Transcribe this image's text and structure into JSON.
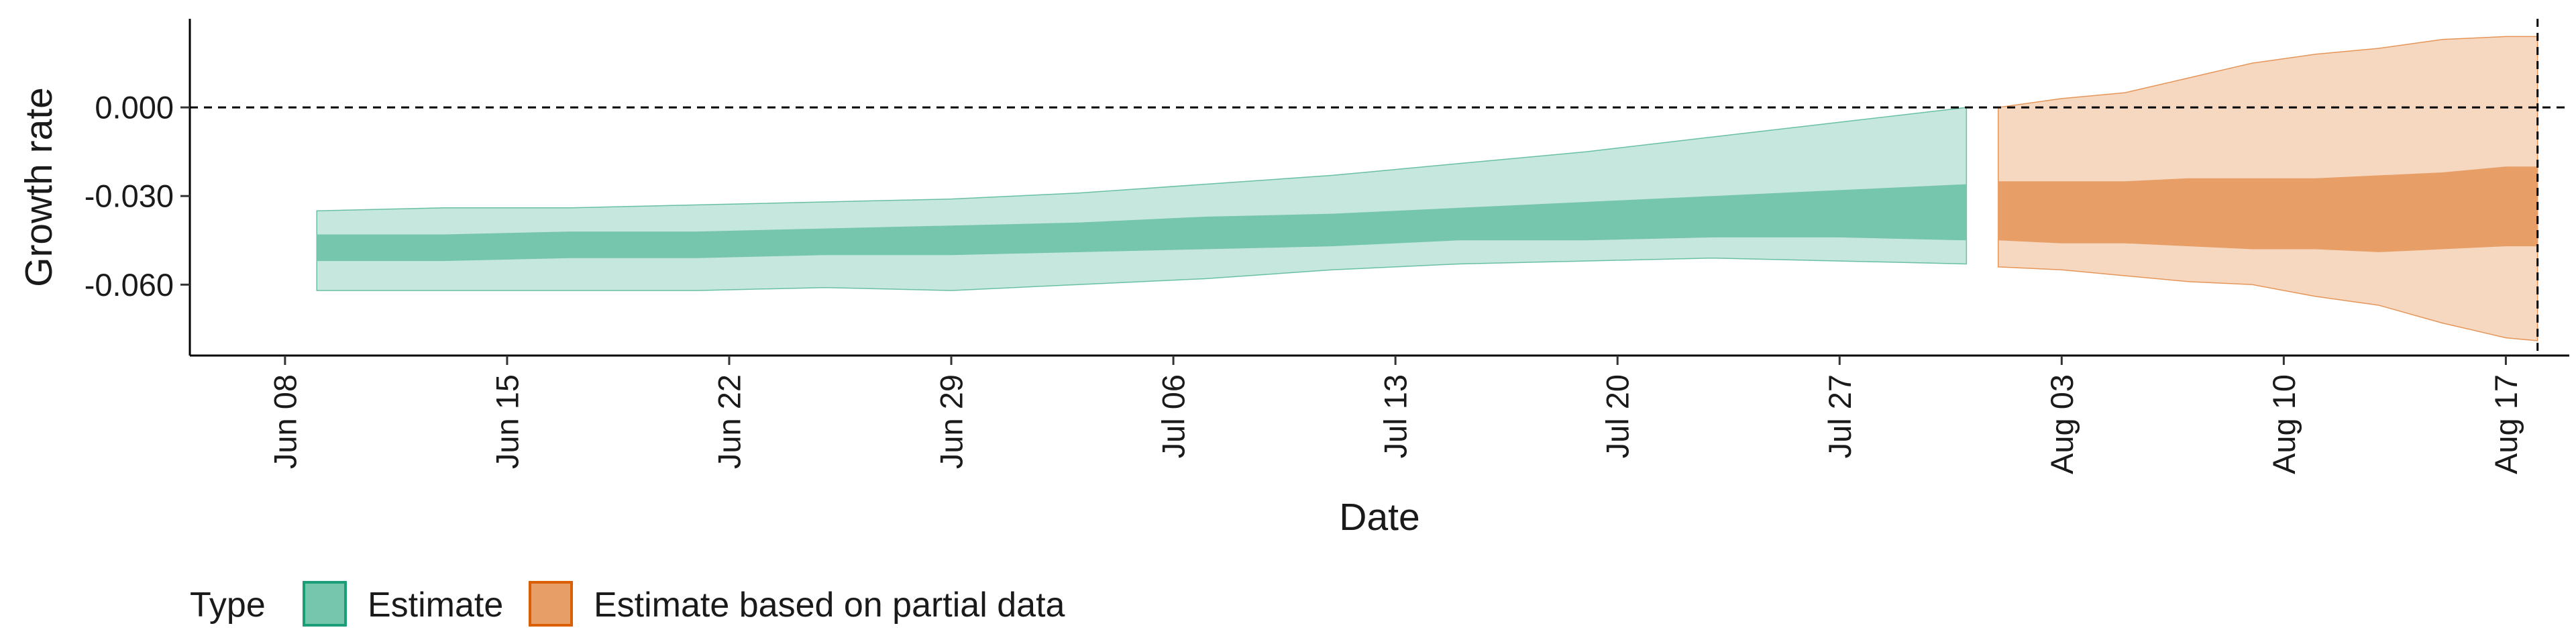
{
  "chart_data": {
    "type": "area",
    "xlabel": "Date",
    "ylabel": "Growth rate",
    "x_ticks": [
      "Jun 08",
      "Jun 15",
      "Jun 22",
      "Jun 29",
      "Jul 06",
      "Jul 13",
      "Jul 20",
      "Jul 27",
      "Aug 03",
      "Aug 10",
      "Aug 17"
    ],
    "y_ticks": [
      "0.000",
      "-0.030",
      "-0.060"
    ],
    "xlim": [
      "2020-06-05",
      "2020-08-19"
    ],
    "ylim": [
      -0.084,
      0.03
    ],
    "reference_lines": [
      {
        "axis": "y",
        "value": 0,
        "style": "dashed"
      },
      {
        "axis": "x",
        "value": "2020-08-18",
        "style": "dashed"
      }
    ],
    "legend": {
      "title": "Type",
      "position": "bottom-left"
    },
    "series": [
      {
        "name": "Estimate",
        "fill": "#1b9e77",
        "x": [
          "2020-06-09",
          "2020-06-13",
          "2020-06-17",
          "2020-06-21",
          "2020-06-25",
          "2020-06-29",
          "2020-07-03",
          "2020-07-07",
          "2020-07-11",
          "2020-07-15",
          "2020-07-19",
          "2020-07-23",
          "2020-07-27",
          "2020-07-31"
        ],
        "outer_lower": [
          -0.062,
          -0.062,
          -0.062,
          -0.062,
          -0.061,
          -0.062,
          -0.06,
          -0.058,
          -0.055,
          -0.053,
          -0.052,
          -0.051,
          -0.052,
          -0.053
        ],
        "inner_lower": [
          -0.052,
          -0.052,
          -0.051,
          -0.051,
          -0.05,
          -0.05,
          -0.049,
          -0.048,
          -0.047,
          -0.045,
          -0.045,
          -0.044,
          -0.044,
          -0.045
        ],
        "inner_upper": [
          -0.043,
          -0.043,
          -0.042,
          -0.042,
          -0.041,
          -0.04,
          -0.039,
          -0.037,
          -0.036,
          -0.034,
          -0.032,
          -0.03,
          -0.028,
          -0.026
        ],
        "outer_upper": [
          -0.035,
          -0.034,
          -0.034,
          -0.033,
          -0.032,
          -0.031,
          -0.029,
          -0.026,
          -0.023,
          -0.019,
          -0.015,
          -0.01,
          -0.005,
          0.0
        ]
      },
      {
        "name": "Estimate based on partial data",
        "fill": "#d95f02",
        "x": [
          "2020-08-01",
          "2020-08-03",
          "2020-08-05",
          "2020-08-07",
          "2020-08-09",
          "2020-08-11",
          "2020-08-13",
          "2020-08-15",
          "2020-08-17",
          "2020-08-18"
        ],
        "outer_lower": [
          -0.054,
          -0.055,
          -0.057,
          -0.059,
          -0.06,
          -0.064,
          -0.067,
          -0.073,
          -0.078,
          -0.079
        ],
        "inner_lower": [
          -0.045,
          -0.046,
          -0.046,
          -0.047,
          -0.048,
          -0.048,
          -0.049,
          -0.048,
          -0.047,
          -0.047
        ],
        "inner_upper": [
          -0.025,
          -0.025,
          -0.025,
          -0.024,
          -0.024,
          -0.024,
          -0.023,
          -0.022,
          -0.02,
          -0.02
        ],
        "outer_upper": [
          0.0,
          0.003,
          0.005,
          0.01,
          0.015,
          0.018,
          0.02,
          0.023,
          0.024,
          0.024
        ]
      }
    ]
  }
}
